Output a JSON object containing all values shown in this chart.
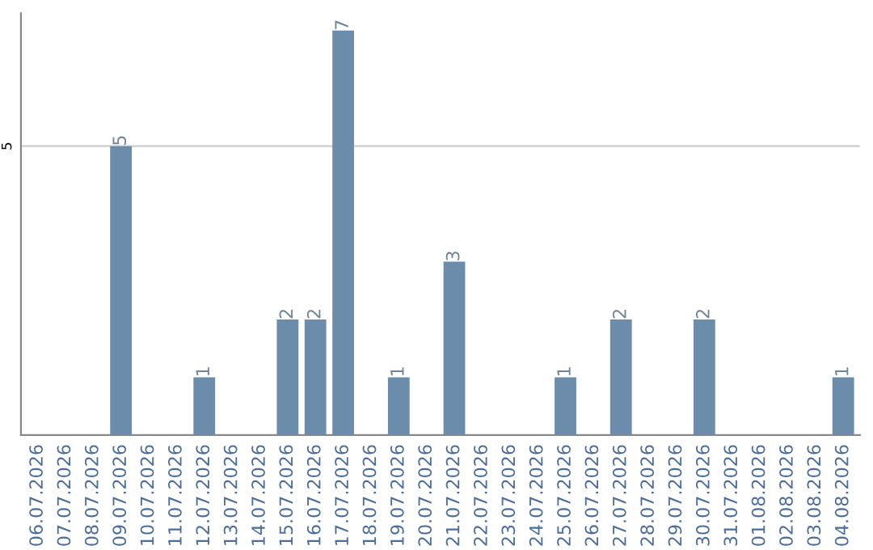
{
  "chart_data": {
    "type": "bar",
    "categories": [
      "06.07.2026",
      "07.07.2026",
      "08.07.2026",
      "09.07.2026",
      "10.07.2026",
      "11.07.2026",
      "12.07.2026",
      "13.07.2026",
      "14.07.2026",
      "15.07.2026",
      "16.07.2026",
      "17.07.2026",
      "18.07.2026",
      "19.07.2026",
      "20.07.2026",
      "21.07.2026",
      "22.07.2026",
      "23.07.2026",
      "24.07.2026",
      "25.07.2026",
      "26.07.2026",
      "27.07.2026",
      "28.07.2026",
      "29.07.2026",
      "30.07.2026",
      "31.07.2026",
      "01.08.2026",
      "02.08.2026",
      "03.08.2026",
      "04.08.2026"
    ],
    "values": [
      0,
      0,
      0,
      5,
      0,
      0,
      1,
      0,
      0,
      2,
      2,
      7,
      0,
      1,
      0,
      3,
      0,
      0,
      0,
      1,
      0,
      2,
      0,
      0,
      2,
      0,
      0,
      0,
      0,
      1
    ],
    "value_labels": [
      null,
      null,
      null,
      "5",
      null,
      null,
      "1",
      null,
      null,
      "2",
      "2",
      "7",
      null,
      "1",
      null,
      "3",
      null,
      null,
      null,
      "1",
      null,
      "2",
      null,
      null,
      "2",
      null,
      null,
      null,
      null,
      "1"
    ],
    "color": "#6b8cab",
    "ylim": [
      0,
      7.3
    ],
    "yticks": [
      5
    ],
    "grid": "y"
  }
}
